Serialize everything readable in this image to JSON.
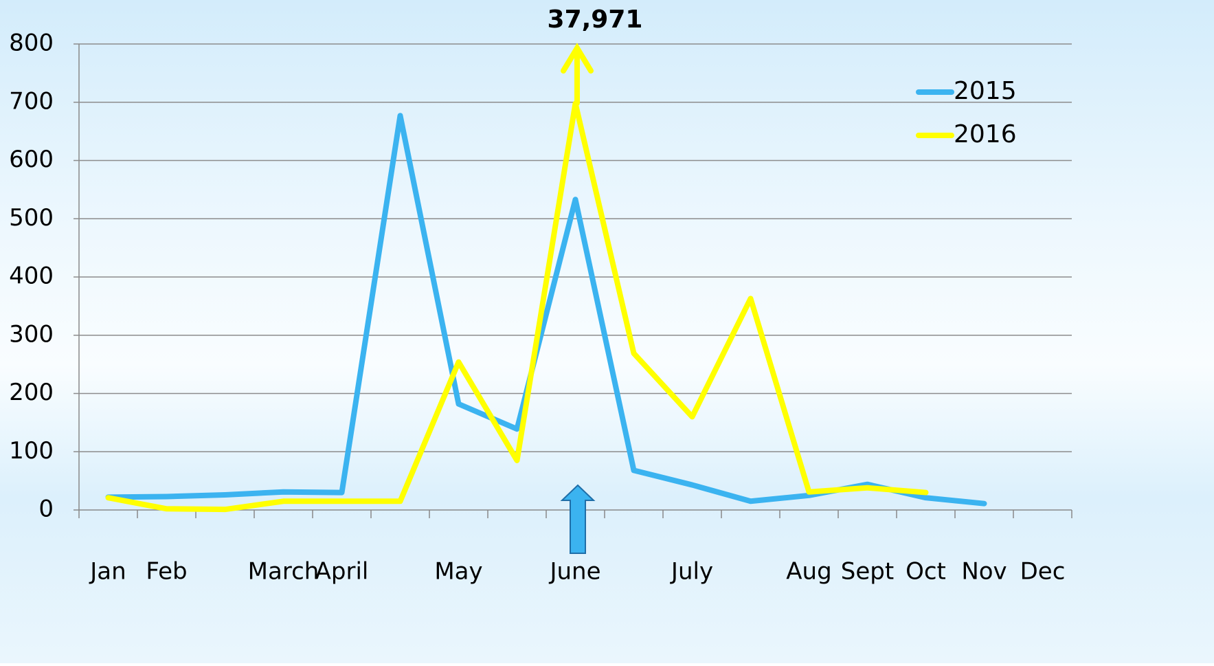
{
  "chart_data": {
    "type": "line",
    "categories": [
      "Jan",
      "Feb",
      null,
      "March",
      "April",
      null,
      "May",
      null,
      "June",
      null,
      "July",
      null,
      "Aug",
      "Sept",
      "Oct",
      "Nov",
      "Dec"
    ],
    "series": [
      {
        "name": "2015",
        "color": "#3bb3f0",
        "values": [
          22,
          23,
          26,
          31,
          30,
          677,
          182,
          139,
          533,
          68,
          43,
          15,
          25,
          44,
          21,
          11,
          null
        ]
      },
      {
        "name": "2016",
        "color": "#ffff00",
        "values": [
          21,
          2,
          1,
          15,
          15,
          15,
          254,
          85,
          698,
          269,
          160,
          363,
          31,
          38,
          30,
          null,
          null
        ]
      }
    ],
    "annotation": "37,971",
    "ylim": [
      0,
      800
    ],
    "yticks": [
      0,
      100,
      200,
      300,
      400,
      500,
      600,
      700,
      800
    ],
    "grid": true,
    "legend": "upper right"
  }
}
